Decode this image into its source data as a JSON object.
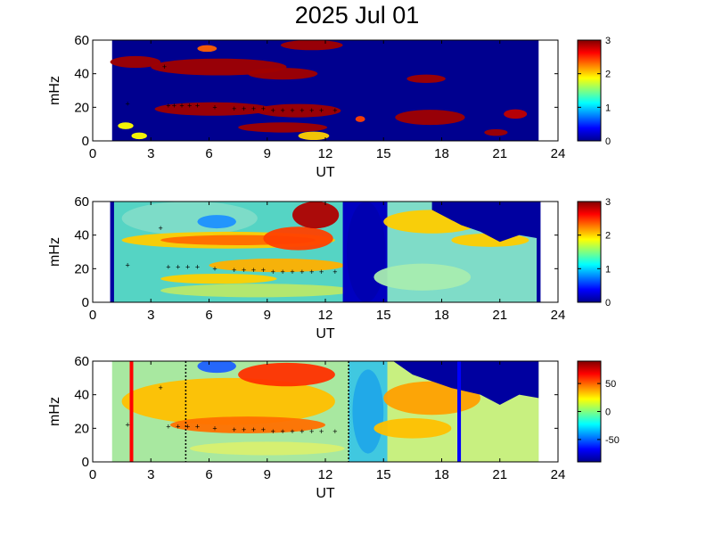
{
  "title": "2025 Jul 01",
  "chart_data": [
    {
      "type": "heatmap",
      "xlabel": "UT",
      "ylabel": "mHz",
      "xlim": [
        0,
        24
      ],
      "ylim": [
        0,
        60
      ],
      "xticks": [
        "0",
        "3",
        "6",
        "9",
        "12",
        "15",
        "18",
        "21",
        "24"
      ],
      "yticks": [
        "0",
        "20",
        "40",
        "60"
      ],
      "colorbar": {
        "range": [
          0,
          3
        ],
        "ticks": [
          "0",
          "1",
          "2",
          "3"
        ]
      },
      "data_start_ut": 1.0,
      "data_end_ut": 23.0,
      "colormap": [
        "#00008f",
        "#0000ff",
        "#00ffff",
        "#ffff00",
        "#ff0000",
        "#800000"
      ],
      "red_markers": [
        {
          "ut": 3.7,
          "mhz": 44
        },
        {
          "ut": 1.8,
          "mhz": 22
        },
        {
          "ut": 3.9,
          "mhz": 21
        }
      ],
      "black_markers": [
        {
          "ut": 4.2,
          "mhz": 21
        },
        {
          "ut": 4.6,
          "mhz": 21
        },
        {
          "ut": 5.0,
          "mhz": 21
        },
        {
          "ut": 5.4,
          "mhz": 21
        },
        {
          "ut": 6.3,
          "mhz": 20
        },
        {
          "ut": 7.3,
          "mhz": 19
        },
        {
          "ut": 7.8,
          "mhz": 19
        },
        {
          "ut": 8.3,
          "mhz": 19
        },
        {
          "ut": 8.8,
          "mhz": 19
        },
        {
          "ut": 9.3,
          "mhz": 18
        },
        {
          "ut": 9.8,
          "mhz": 18
        },
        {
          "ut": 10.3,
          "mhz": 18
        },
        {
          "ut": 10.8,
          "mhz": 18
        },
        {
          "ut": 11.3,
          "mhz": 18
        },
        {
          "ut": 11.8,
          "mhz": 18
        },
        {
          "ut": 12.5,
          "mhz": 18
        }
      ]
    },
    {
      "type": "heatmap",
      "xlabel": "UT",
      "ylabel": "mHz",
      "xlim": [
        0,
        24
      ],
      "ylim": [
        0,
        60
      ],
      "xticks": [
        "0",
        "3",
        "6",
        "9",
        "12",
        "15",
        "18",
        "21",
        "24"
      ],
      "yticks": [
        "0",
        "20",
        "40",
        "60"
      ],
      "colorbar": {
        "range": [
          0,
          3
        ],
        "ticks": [
          "0",
          "1",
          "2",
          "3"
        ]
      },
      "data_start_ut": 1.0,
      "data_end_ut": 23.0,
      "colormap": [
        "#00008f",
        "#0000ff",
        "#00ffff",
        "#ffff00",
        "#ff0000",
        "#800000"
      ],
      "red_markers": [
        {
          "ut": 3.5,
          "mhz": 44
        },
        {
          "ut": 1.8,
          "mhz": 22
        }
      ],
      "black_markers": [
        {
          "ut": 3.9,
          "mhz": 21
        },
        {
          "ut": 4.4,
          "mhz": 21
        },
        {
          "ut": 4.9,
          "mhz": 21
        },
        {
          "ut": 5.4,
          "mhz": 21
        },
        {
          "ut": 6.3,
          "mhz": 20
        },
        {
          "ut": 7.3,
          "mhz": 19
        },
        {
          "ut": 7.8,
          "mhz": 19
        },
        {
          "ut": 8.3,
          "mhz": 19
        },
        {
          "ut": 8.8,
          "mhz": 19
        },
        {
          "ut": 9.3,
          "mhz": 18
        },
        {
          "ut": 9.8,
          "mhz": 18
        },
        {
          "ut": 10.3,
          "mhz": 18
        },
        {
          "ut": 10.8,
          "mhz": 18
        },
        {
          "ut": 11.3,
          "mhz": 18
        },
        {
          "ut": 11.8,
          "mhz": 18
        },
        {
          "ut": 12.5,
          "mhz": 18
        }
      ]
    },
    {
      "type": "heatmap",
      "xlabel": "UT",
      "ylabel": "mHz",
      "xlim": [
        0,
        24
      ],
      "ylim": [
        0,
        60
      ],
      "xticks": [
        "0",
        "3",
        "6",
        "9",
        "12",
        "15",
        "18",
        "21",
        "24"
      ],
      "yticks": [
        "0",
        "20",
        "40",
        "60"
      ],
      "colorbar": {
        "range": [
          -90,
          90
        ],
        "ticks": [
          "50",
          "0",
          "-50"
        ]
      },
      "data_start_ut": 1.0,
      "data_end_ut": 23.0,
      "colormap": [
        "#00008f",
        "#0000ff",
        "#00ffff",
        "#ffff00",
        "#ff0000",
        "#800000"
      ],
      "vlines": [
        {
          "ut": 2.0,
          "color": "#ff0000",
          "style": "solid"
        },
        {
          "ut": 4.8,
          "color": "#000000",
          "style": "dotted"
        },
        {
          "ut": 13.2,
          "color": "#000000",
          "style": "dotted"
        },
        {
          "ut": 18.9,
          "color": "#0000ff",
          "style": "solid"
        }
      ],
      "red_markers": [
        {
          "ut": 3.5,
          "mhz": 44
        },
        {
          "ut": 1.8,
          "mhz": 22
        }
      ],
      "black_markers": [
        {
          "ut": 3.9,
          "mhz": 21
        },
        {
          "ut": 4.4,
          "mhz": 21
        },
        {
          "ut": 4.9,
          "mhz": 21
        },
        {
          "ut": 5.4,
          "mhz": 21
        },
        {
          "ut": 6.3,
          "mhz": 20
        },
        {
          "ut": 7.3,
          "mhz": 19
        },
        {
          "ut": 7.8,
          "mhz": 19
        },
        {
          "ut": 8.3,
          "mhz": 19
        },
        {
          "ut": 8.8,
          "mhz": 19
        },
        {
          "ut": 9.3,
          "mhz": 18
        },
        {
          "ut": 9.8,
          "mhz": 18
        },
        {
          "ut": 10.3,
          "mhz": 18
        },
        {
          "ut": 10.8,
          "mhz": 18
        },
        {
          "ut": 11.3,
          "mhz": 18
        },
        {
          "ut": 11.8,
          "mhz": 18
        },
        {
          "ut": 12.5,
          "mhz": 18
        }
      ]
    }
  ]
}
